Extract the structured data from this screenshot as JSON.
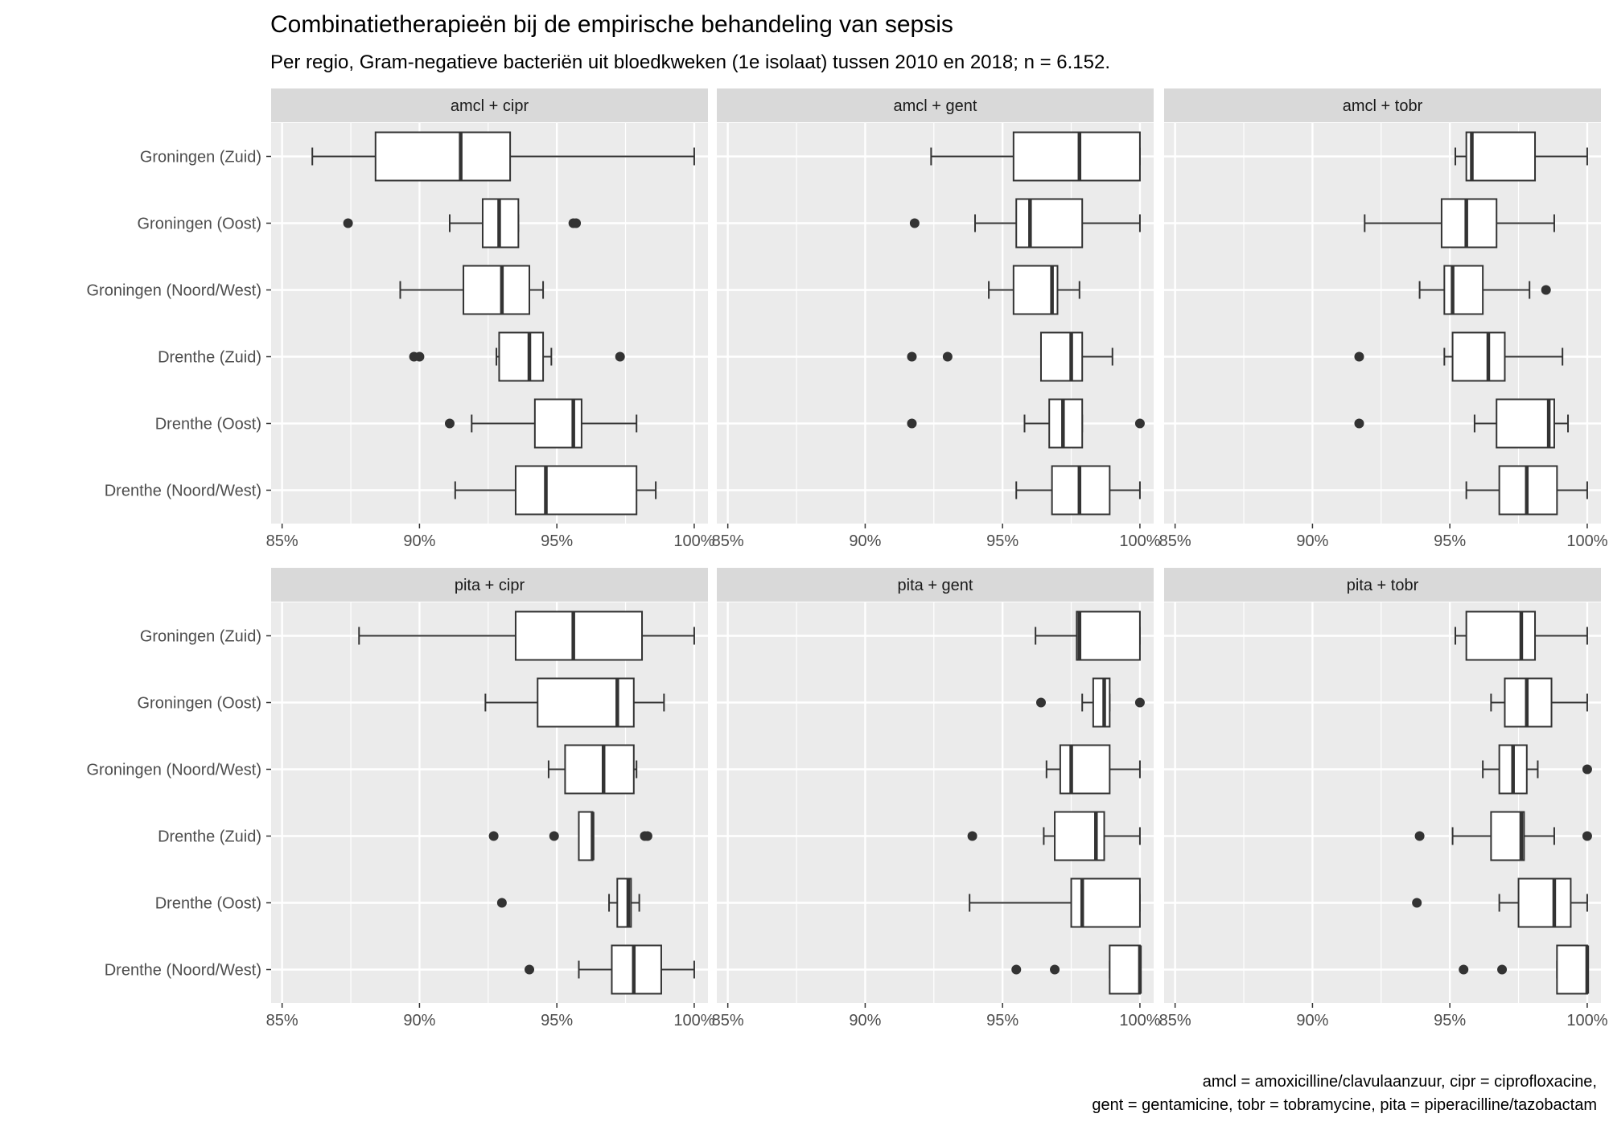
{
  "title": "Combinatietherapieën bij de empirische behandeling van sepsis",
  "subtitle": "Per regio, Gram-negatieve bacteriën uit bloedkweken (1e isolaat) tussen 2010 en 2018; n = 6.152.",
  "caption": [
    "amcl = amoxicilline/clavulaanzuur, cipr = ciprofloxacine,",
    "gent = gentamicine, tobr = tobramycine, pita = piperacilline/tazobactam"
  ],
  "colors": {
    "panel": "#ebebeb",
    "strip": "#d9d9d9",
    "grid": "#ffffff",
    "box_fill": "#ffffff",
    "box_line": "#333333"
  },
  "chart_data": {
    "type": "boxplot",
    "orientation": "horizontal",
    "categories": [
      "Groningen (Zuid)",
      "Groningen (Oost)",
      "Groningen (Noord/West)",
      "Drenthe (Zuid)",
      "Drenthe (Oost)",
      "Drenthe (Noord/West)"
    ],
    "xlim": [
      84.6,
      100.5
    ],
    "x_ticks": [
      85,
      90,
      95,
      100
    ],
    "x_tick_labels": [
      "85%",
      "90%",
      "95%",
      "100%"
    ],
    "grid": true,
    "facets": [
      {
        "label": "amcl + cipr",
        "boxes": [
          {
            "min": 86.1,
            "q1": 88.4,
            "median": 91.5,
            "q3": 93.3,
            "max": 100,
            "outliers": []
          },
          {
            "min": 91.1,
            "q1": 92.3,
            "median": 92.9,
            "q3": 93.6,
            "max": 93.6,
            "outliers": [
              87.4,
              95.6,
              95.7
            ]
          },
          {
            "min": 89.3,
            "q1": 91.6,
            "median": 93.0,
            "q3": 94.0,
            "max": 94.5,
            "outliers": []
          },
          {
            "min": 92.8,
            "q1": 92.9,
            "median": 94.0,
            "q3": 94.5,
            "max": 94.8,
            "outliers": [
              89.8,
              90.0,
              97.3
            ]
          },
          {
            "min": 91.9,
            "q1": 94.2,
            "median": 95.6,
            "q3": 95.9,
            "max": 97.9,
            "outliers": [
              91.1
            ]
          },
          {
            "min": 91.3,
            "q1": 93.5,
            "median": 94.6,
            "q3": 97.9,
            "max": 98.6,
            "outliers": []
          }
        ]
      },
      {
        "label": "amcl + gent",
        "boxes": [
          {
            "min": 92.4,
            "q1": 95.4,
            "median": 97.8,
            "q3": 100,
            "max": 100,
            "outliers": []
          },
          {
            "min": 94.0,
            "q1": 95.5,
            "median": 96.0,
            "q3": 97.9,
            "max": 100,
            "outliers": [
              91.8
            ]
          },
          {
            "min": 94.5,
            "q1": 95.4,
            "median": 96.8,
            "q3": 97.0,
            "max": 97.8,
            "outliers": []
          },
          {
            "min": 96.4,
            "q1": 96.4,
            "median": 97.5,
            "q3": 97.9,
            "max": 99.0,
            "outliers": [
              91.7,
              93.0
            ]
          },
          {
            "min": 95.8,
            "q1": 96.7,
            "median": 97.2,
            "q3": 97.9,
            "max": 97.9,
            "outliers": [
              91.7,
              100
            ]
          },
          {
            "min": 95.5,
            "q1": 96.8,
            "median": 97.8,
            "q3": 98.9,
            "max": 100,
            "outliers": []
          }
        ]
      },
      {
        "label": "amcl + tobr",
        "boxes": [
          {
            "min": 95.2,
            "q1": 95.6,
            "median": 95.8,
            "q3": 98.1,
            "max": 100,
            "outliers": []
          },
          {
            "min": 91.9,
            "q1": 94.7,
            "median": 95.6,
            "q3": 96.7,
            "max": 98.8,
            "outliers": []
          },
          {
            "min": 93.9,
            "q1": 94.8,
            "median": 95.1,
            "q3": 96.2,
            "max": 97.9,
            "outliers": [
              98.5
            ]
          },
          {
            "min": 94.8,
            "q1": 95.1,
            "median": 96.4,
            "q3": 97.0,
            "max": 99.1,
            "outliers": [
              91.7
            ]
          },
          {
            "min": 95.9,
            "q1": 96.7,
            "median": 98.6,
            "q3": 98.8,
            "max": 99.3,
            "outliers": [
              91.7
            ]
          },
          {
            "min": 95.6,
            "q1": 96.8,
            "median": 97.8,
            "q3": 98.9,
            "max": 100,
            "outliers": []
          }
        ]
      },
      {
        "label": "pita + cipr",
        "boxes": [
          {
            "min": 87.8,
            "q1": 93.5,
            "median": 95.6,
            "q3": 98.1,
            "max": 100,
            "outliers": []
          },
          {
            "min": 92.4,
            "q1": 94.3,
            "median": 97.2,
            "q3": 97.8,
            "max": 98.9,
            "outliers": []
          },
          {
            "min": 94.7,
            "q1": 95.3,
            "median": 96.7,
            "q3": 97.8,
            "max": 97.9,
            "outliers": []
          },
          {
            "min": 95.8,
            "q1": 95.8,
            "median": 96.3,
            "q3": 96.3,
            "max": 96.3,
            "outliers": [
              92.7,
              94.9,
              98.2,
              98.3
            ]
          },
          {
            "min": 96.9,
            "q1": 97.2,
            "median": 97.6,
            "q3": 97.7,
            "max": 98.0,
            "outliers": [
              93.0
            ]
          },
          {
            "min": 95.8,
            "q1": 97.0,
            "median": 97.8,
            "q3": 98.8,
            "max": 100,
            "outliers": [
              94.0
            ]
          }
        ]
      },
      {
        "label": "pita + gent",
        "boxes": [
          {
            "min": 96.2,
            "q1": 97.7,
            "median": 97.8,
            "q3": 100,
            "max": 100,
            "outliers": []
          },
          {
            "min": 97.9,
            "q1": 98.3,
            "median": 98.7,
            "q3": 98.9,
            "max": 98.9,
            "outliers": [
              96.4,
              100
            ]
          },
          {
            "min": 96.6,
            "q1": 97.1,
            "median": 97.5,
            "q3": 98.9,
            "max": 100,
            "outliers": []
          },
          {
            "min": 96.5,
            "q1": 96.9,
            "median": 98.4,
            "q3": 98.7,
            "max": 100,
            "outliers": [
              93.9
            ]
          },
          {
            "min": 93.8,
            "q1": 97.5,
            "median": 97.9,
            "q3": 100,
            "max": 100,
            "outliers": []
          },
          {
            "min": 98.9,
            "q1": 98.9,
            "median": 100,
            "q3": 100,
            "max": 100,
            "outliers": [
              95.5,
              96.9
            ]
          }
        ]
      },
      {
        "label": "pita + tobr",
        "boxes": [
          {
            "min": 95.2,
            "q1": 95.6,
            "median": 97.6,
            "q3": 98.1,
            "max": 100,
            "outliers": []
          },
          {
            "min": 96.5,
            "q1": 97.0,
            "median": 97.8,
            "q3": 98.7,
            "max": 100,
            "outliers": []
          },
          {
            "min": 96.2,
            "q1": 96.8,
            "median": 97.3,
            "q3": 97.8,
            "max": 98.2,
            "outliers": [
              100
            ]
          },
          {
            "min": 95.1,
            "q1": 96.5,
            "median": 97.6,
            "q3": 97.7,
            "max": 98.8,
            "outliers": [
              93.9,
              100
            ]
          },
          {
            "min": 96.8,
            "q1": 97.5,
            "median": 98.8,
            "q3": 99.4,
            "max": 100,
            "outliers": [
              93.8
            ]
          },
          {
            "min": 98.9,
            "q1": 98.9,
            "median": 100,
            "q3": 100,
            "max": 100,
            "outliers": [
              95.5,
              96.9
            ]
          }
        ]
      }
    ]
  }
}
